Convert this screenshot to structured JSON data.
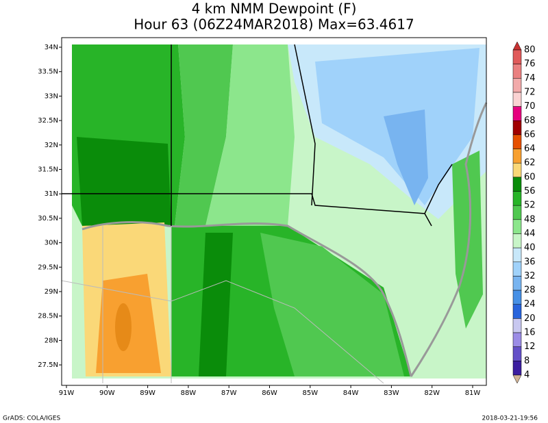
{
  "title": {
    "line1": "4 km NMM Dewpoint (F)",
    "line2": "Hour 63 (06Z24MAR2018) Max=63.4617"
  },
  "map": {
    "lat_labels": [
      "34N",
      "33.5N",
      "33N",
      "32.5N",
      "32N",
      "31.5N",
      "31N",
      "30.5N",
      "30N",
      "29.5N",
      "29N",
      "28.5N",
      "28N",
      "27.5N"
    ],
    "lon_labels": [
      "91W",
      "90W",
      "89W",
      "88W",
      "87W",
      "86W",
      "85W",
      "84W",
      "83W",
      "82W",
      "81W"
    ]
  },
  "colorbar": {
    "labels": [
      80,
      76,
      74,
      72,
      70,
      68,
      66,
      64,
      62,
      60,
      56,
      52,
      48,
      44,
      40,
      36,
      32,
      28,
      24,
      20,
      16,
      12,
      8,
      4
    ],
    "colors": [
      "#c83232",
      "#e05a5a",
      "#ea8080",
      "#f2aaaa",
      "#fad2d2",
      "#e6007e",
      "#a00000",
      "#e65000",
      "#f8a030",
      "#fad878",
      "#0a8c0a",
      "#28b428",
      "#50c850",
      "#8ce68c",
      "#c8f5c8",
      "#c8e8fa",
      "#a0d2fa",
      "#78b4f0",
      "#4690e6",
      "#2864dc",
      "#c8c8f0",
      "#9b8ce6",
      "#6450c8",
      "#3c1ea0",
      "#14147a",
      "#d2b496"
    ]
  },
  "footer": {
    "left": "GrADS: COLA/IGES",
    "right": "2018-03-21-19:56"
  }
}
